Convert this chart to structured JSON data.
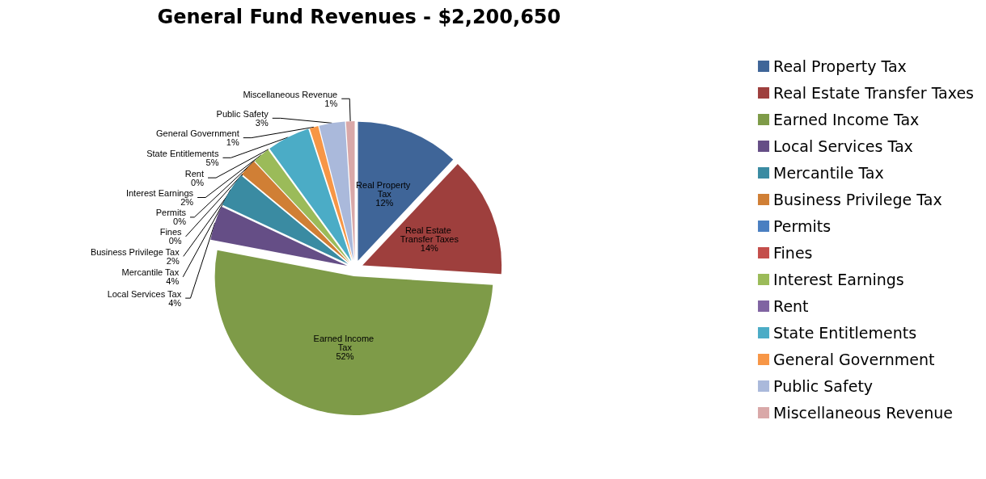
{
  "chart_data": {
    "type": "pie",
    "title": "General Fund Revenues - $2,200,650",
    "categories": [
      "Real Property Tax",
      "Real Estate Transfer Taxes",
      "Earned Income Tax",
      "Local Services Tax",
      "Mercantile Tax",
      "Business Privilege Tax",
      "Permits",
      "Fines",
      "Interest Earnings",
      "Rent",
      "State Entitlements",
      "General Government",
      "Public Safety",
      "Miscellaneous Revenue"
    ],
    "values": [
      12,
      14,
      52,
      4,
      4,
      2,
      0,
      0,
      2,
      0,
      5,
      1,
      3,
      1
    ],
    "value_labels": [
      "12%",
      "14%",
      "52%",
      "4%",
      "4%",
      "2%",
      "0%",
      "0%",
      "2%",
      "0%",
      "5%",
      "1%",
      "3%",
      "1%"
    ],
    "colors": [
      "#3f6598",
      "#9e3f3d",
      "#7e9b48",
      "#654e86",
      "#3a8ba2",
      "#d07f35",
      "#4a7fc1",
      "#c44e4b",
      "#9bbb59",
      "#8064a2",
      "#4bacc6",
      "#f79646",
      "#aab9db",
      "#d9a8a8"
    ],
    "legend": "right"
  }
}
